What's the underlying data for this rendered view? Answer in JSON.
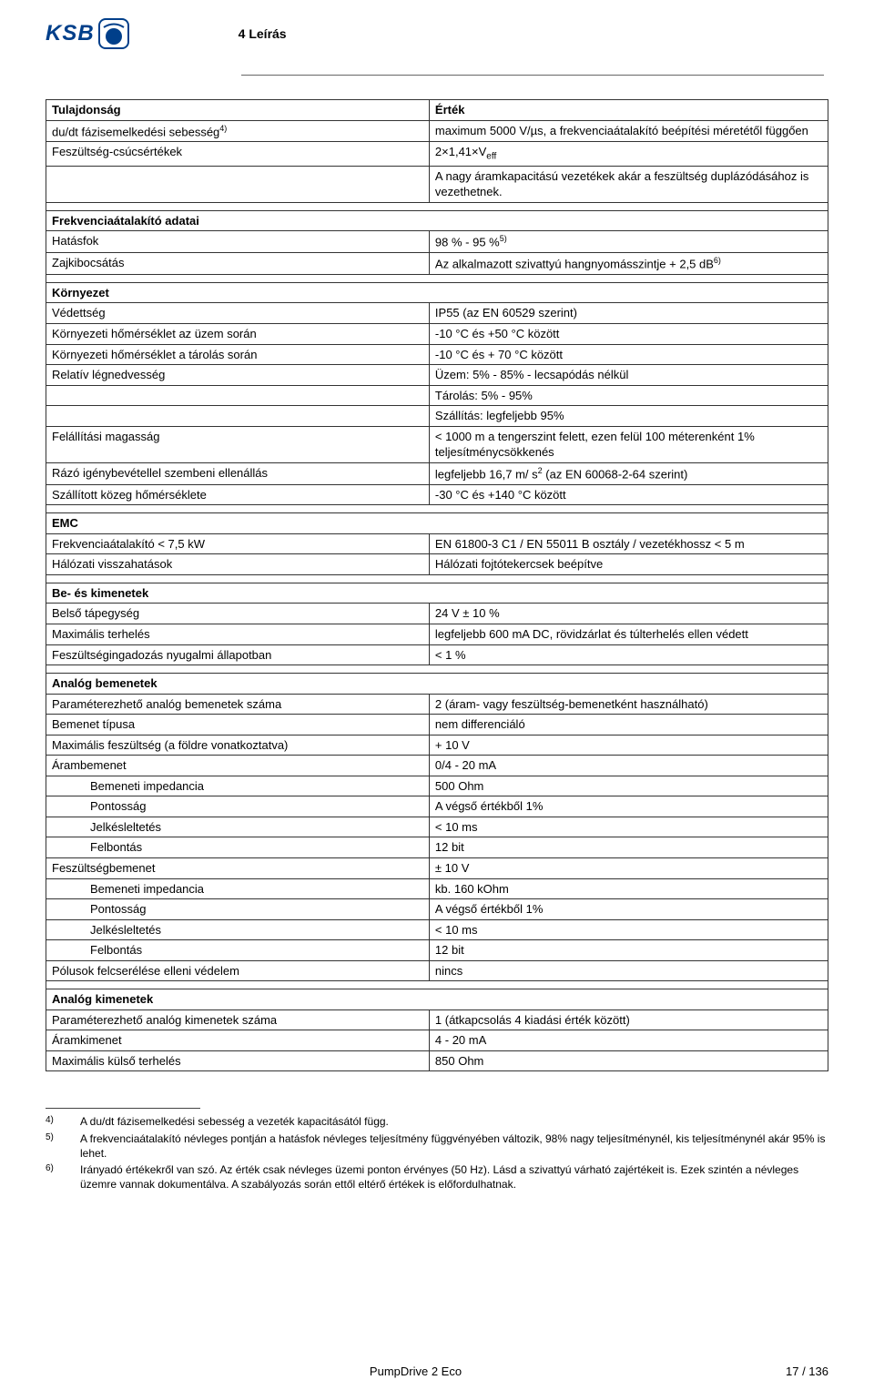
{
  "brand": "KSB",
  "section_number": "4 Leírás",
  "table": {
    "header": {
      "prop": "Tulajdonság",
      "val": "Érték"
    },
    "rows": [
      {
        "t": "row",
        "prop": "du/dt fázisemelkedési sebesség",
        "sup": "4)",
        "val": "maximum 5000 V/µs, a frekvenciaátalakító beépítési méretétől függően"
      },
      {
        "t": "row",
        "prop": "Feszültség-csúcsértékek",
        "val_html": "2×1,41×V<sub class='sub'>eff</sub>"
      },
      {
        "t": "cont",
        "val": "A nagy áramkapacitású vezetékek akár a feszültség duplázódásához is vezethetnek."
      },
      {
        "t": "spacer"
      },
      {
        "t": "section",
        "label": "Frekvenciaátalakító adatai"
      },
      {
        "t": "row",
        "prop": "Hatásfok",
        "val": "98 % - 95 %",
        "valsup": "5)"
      },
      {
        "t": "row",
        "prop": "Zajkibocsátás",
        "val": "Az alkalmazott szivattyú hangnyomásszintje + 2,5 dB",
        "valsup": "6)"
      },
      {
        "t": "spacer"
      },
      {
        "t": "section",
        "label": "Környezet"
      },
      {
        "t": "row",
        "prop": "Védettség",
        "val": "IP55 (az EN 60529 szerint)"
      },
      {
        "t": "row",
        "prop": "Környezeti hőmérséklet az üzem során",
        "val": "-10 °C és +50 °C között"
      },
      {
        "t": "row",
        "prop": "Környezeti hőmérséklet a tárolás során",
        "val": "-10 °C és + 70 °C között"
      },
      {
        "t": "row",
        "prop": "Relatív légnedvesség",
        "val": "Üzem: 5% - 85% - lecsapódás nélkül"
      },
      {
        "t": "cont",
        "val": "Tárolás: 5% - 95%"
      },
      {
        "t": "cont",
        "val": "Szállítás: legfeljebb 95%"
      },
      {
        "t": "row",
        "prop": "Felállítási magasság",
        "val": "< 1000 m a tengerszint felett, ezen felül 100 méterenként 1% teljesítménycsökkenés"
      },
      {
        "t": "row",
        "prop": "Rázó igénybevétellel szembeni ellenállás",
        "val_html": "legfeljebb 16,7 m/ s<sup>2</sup> (az EN 60068-2-64 szerint)"
      },
      {
        "t": "row",
        "prop": "Szállított közeg hőmérséklete",
        "val": "-30 °C és +140 °C között"
      },
      {
        "t": "spacer"
      },
      {
        "t": "section",
        "label": "EMC"
      },
      {
        "t": "row",
        "prop": "Frekvenciaátalakító < 7,5 kW",
        "val": "EN 61800-3 C1 / EN 55011 B osztály / vezetékhossz < 5 m"
      },
      {
        "t": "row",
        "prop": "Hálózati visszahatások",
        "val": "Hálózati fojtótekercsek beépítve"
      },
      {
        "t": "spacer"
      },
      {
        "t": "section",
        "label": "Be- és kimenetek"
      },
      {
        "t": "row",
        "prop": "Belső tápegység",
        "val": "24 V ± 10 %"
      },
      {
        "t": "row",
        "prop": "Maximális terhelés",
        "val": "legfeljebb 600 mA DC, rövidzárlat és túlterhelés ellen védett"
      },
      {
        "t": "row",
        "prop": "Feszültségingadozás nyugalmi állapotban",
        "val": "< 1 %"
      },
      {
        "t": "spacer"
      },
      {
        "t": "section",
        "label": "Analóg bemenetek"
      },
      {
        "t": "row",
        "prop": "Paraméterezhető analóg bemenetek száma",
        "val": "2 (áram- vagy feszültség-bemenetként használható)"
      },
      {
        "t": "row",
        "prop": "Bemenet típusa",
        "val": "nem differenciáló"
      },
      {
        "t": "row",
        "prop": "Maximális feszültség (a földre vonatkoztatva)",
        "val": "+ 10 V"
      },
      {
        "t": "row",
        "prop": "Árambemenet",
        "val": "0/4 - 20 mA"
      },
      {
        "t": "row",
        "indent": 1,
        "prop": "Bemeneti impedancia",
        "val": "500 Ohm"
      },
      {
        "t": "row",
        "indent": 1,
        "prop": "Pontosság",
        "val": "A végső értékből 1%"
      },
      {
        "t": "row",
        "indent": 1,
        "prop": "Jelkésleltetés",
        "val": "< 10 ms"
      },
      {
        "t": "row",
        "indent": 1,
        "prop": "Felbontás",
        "val": "12 bit"
      },
      {
        "t": "row",
        "prop": "Feszültségbemenet",
        "val": "± 10 V"
      },
      {
        "t": "row",
        "indent": 1,
        "prop": "Bemeneti impedancia",
        "val": "kb. 160 kOhm"
      },
      {
        "t": "row",
        "indent": 1,
        "prop": "Pontosság",
        "val": "A végső értékből 1%"
      },
      {
        "t": "row",
        "indent": 1,
        "prop": "Jelkésleltetés",
        "val": "< 10 ms"
      },
      {
        "t": "row",
        "indent": 1,
        "prop": "Felbontás",
        "val": "12 bit"
      },
      {
        "t": "row",
        "prop": "Pólusok felcserélése elleni védelem",
        "val": "nincs"
      },
      {
        "t": "spacer"
      },
      {
        "t": "section",
        "label": "Analóg kimenetek"
      },
      {
        "t": "row",
        "prop": "Paraméterezhető analóg kimenetek száma",
        "val": "1 (átkapcsolás 4 kiadási érték között)"
      },
      {
        "t": "row",
        "prop": "Áramkimenet",
        "val": "4 - 20 mA"
      },
      {
        "t": "row",
        "prop": "Maximális külső terhelés",
        "val": "850 Ohm"
      }
    ]
  },
  "footnotes": [
    {
      "n": "4)",
      "text": "A du/dt fázisemelkedési sebesség a vezeték kapacitásától függ."
    },
    {
      "n": "5)",
      "text": "A frekvenciaátalakító névleges pontján a hatásfok névleges teljesítmény függvényében változik, 98% nagy teljesítménynél, kis teljesítménynél akár 95% is lehet."
    },
    {
      "n": "6)",
      "text": "Irányadó értékekről van szó. Az érték csak névleges üzemi ponton érvényes (50 Hz). Lásd a szivattyú várható zajértékeit is. Ezek szintén a névleges üzemre vannak dokumentálva. A szabályozás során ettől eltérő értékek is előfordulhatnak."
    }
  ],
  "footer": {
    "left": "",
    "mid": "PumpDrive 2 Eco",
    "right": "17 / 136"
  },
  "colors": {
    "brand": "#003f8a",
    "border": "#333333",
    "text": "#000000",
    "bg": "#ffffff"
  }
}
